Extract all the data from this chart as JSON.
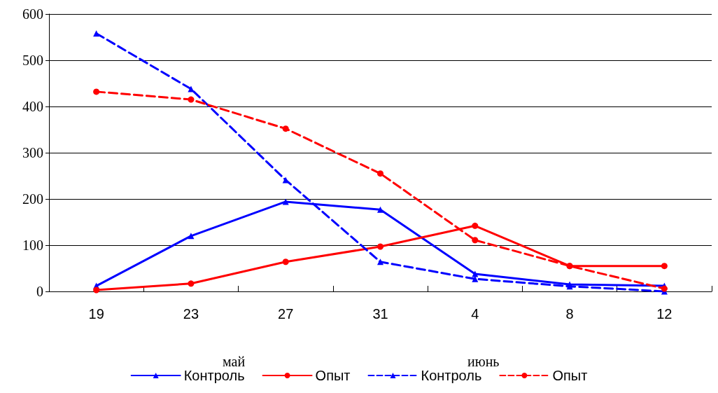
{
  "chart_data": {
    "type": "line",
    "categories": [
      "19",
      "23",
      "27",
      "31",
      "4",
      "8",
      "12"
    ],
    "series": [
      {
        "name": "Контроль",
        "color": "#0000ff",
        "marker": "triangle",
        "line_style": "solid",
        "values": [
          12,
          120,
          194,
          177,
          38,
          15,
          12
        ]
      },
      {
        "name": "Опыт",
        "color": "#ff0000",
        "marker": "circle",
        "line_style": "solid",
        "values": [
          3,
          17,
          64,
          97,
          142,
          55,
          55
        ]
      },
      {
        "name": "Контроль",
        "color": "#0000ff",
        "marker": "triangle",
        "line_style": "dashed",
        "values": [
          558,
          438,
          241,
          64,
          27,
          11,
          0
        ]
      },
      {
        "name": "Опыт",
        "color": "#ff0000",
        "marker": "circle",
        "line_style": "dashed",
        "values": [
          432,
          415,
          352,
          255,
          111,
          55,
          6
        ]
      }
    ],
    "ylim": [
      0,
      600
    ],
    "yticks": [
      0,
      100,
      200,
      300,
      400,
      500,
      600
    ],
    "grid": "y",
    "legend": "bottom",
    "annotations": [
      "май",
      "июнь"
    ]
  }
}
